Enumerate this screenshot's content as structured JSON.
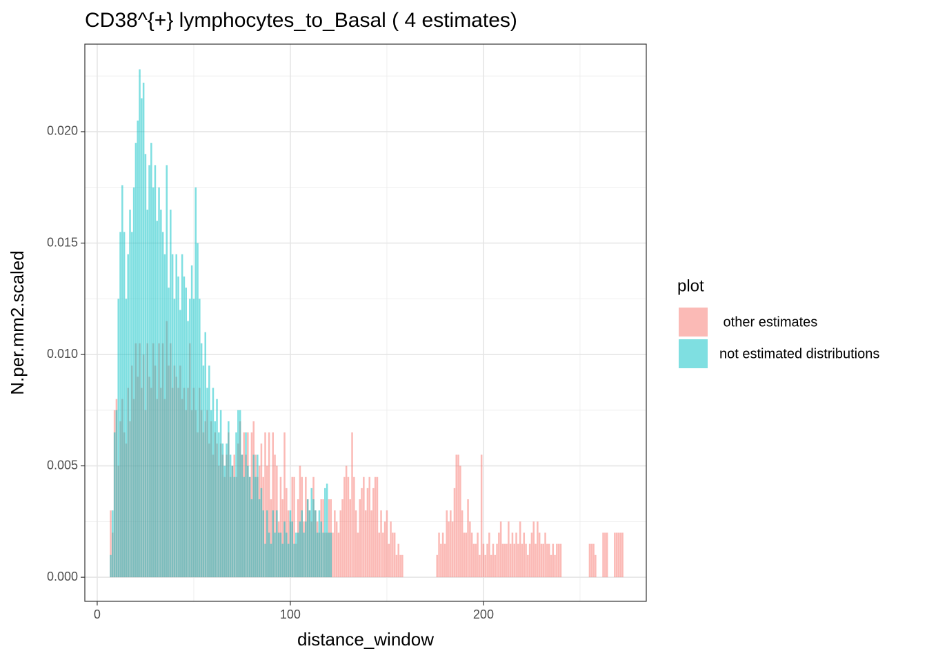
{
  "chart_data": {
    "type": "bar",
    "title": "CD38^{+} lymphocytes_to_Basal ( 4 estimates)",
    "x_label": "distance_window",
    "y_label": "N.per.mm2.scaled",
    "legend_title": "plot",
    "legend_position": "right",
    "grid": true,
    "xlim": [
      -6.4,
      284.3
    ],
    "ylim": [
      -0.00108,
      0.02393
    ],
    "xticks": [
      0,
      100,
      200
    ],
    "yticks": [
      {
        "value": 0,
        "label": "0.000"
      },
      {
        "value": 0.005,
        "label": "0.005"
      },
      {
        "value": 0.01,
        "label": "0.010"
      },
      {
        "value": 0.015,
        "label": "0.015"
      },
      {
        "value": 0.02,
        "label": "0.020"
      }
    ],
    "series": [
      {
        "name": " other estimates",
        "color": "#F8766D",
        "opacity": 0.5,
        "x": [
          7,
          8,
          9,
          10,
          11,
          12,
          13,
          14,
          15,
          16,
          17,
          18,
          19,
          20,
          21,
          22,
          23,
          24,
          25,
          26,
          27,
          28,
          29,
          30,
          31,
          32,
          33,
          34,
          35,
          36,
          37,
          38,
          39,
          40,
          41,
          42,
          43,
          44,
          45,
          46,
          47,
          48,
          49,
          50,
          51,
          52,
          53,
          54,
          55,
          56,
          57,
          58,
          59,
          60,
          61,
          62,
          63,
          64,
          65,
          66,
          67,
          68,
          69,
          70,
          71,
          72,
          73,
          74,
          75,
          76,
          77,
          78,
          79,
          80,
          81,
          82,
          83,
          84,
          85,
          86,
          87,
          88,
          89,
          90,
          91,
          92,
          93,
          94,
          95,
          96,
          97,
          98,
          99,
          100,
          101,
          102,
          103,
          104,
          105,
          106,
          107,
          108,
          109,
          110,
          111,
          112,
          113,
          114,
          115,
          116,
          117,
          118,
          119,
          120,
          121,
          122,
          123,
          124,
          125,
          126,
          127,
          128,
          129,
          130,
          131,
          132,
          133,
          134,
          135,
          136,
          137,
          138,
          139,
          140,
          141,
          142,
          143,
          144,
          145,
          146,
          147,
          148,
          149,
          150,
          151,
          152,
          153,
          154,
          155,
          156,
          157,
          158,
          176,
          177,
          178,
          179,
          180,
          181,
          182,
          183,
          184,
          185,
          186,
          187,
          188,
          189,
          190,
          191,
          192,
          193,
          194,
          195,
          196,
          197,
          198,
          199,
          200,
          201,
          202,
          203,
          204,
          205,
          206,
          207,
          208,
          209,
          210,
          211,
          212,
          213,
          214,
          215,
          216,
          217,
          218,
          219,
          220,
          221,
          222,
          223,
          224,
          225,
          226,
          227,
          228,
          229,
          230,
          231,
          232,
          233,
          234,
          235,
          236,
          237,
          238,
          239,
          240,
          255,
          256,
          257,
          258,
          262,
          263,
          264,
          268,
          269,
          270,
          271,
          272
        ],
        "values": [
          0.003,
          0.002,
          0.0075,
          0.008,
          0.005,
          0.007,
          0.008,
          0.0065,
          0.006,
          0.0085,
          0.007,
          0.0095,
          0.008,
          0.0105,
          0.009,
          0.0105,
          0.0085,
          0.01,
          0.0075,
          0.0105,
          0.009,
          0.0085,
          0.0105,
          0.0095,
          0.008,
          0.0105,
          0.0085,
          0.0105,
          0.008,
          0.0115,
          0.0095,
          0.0105,
          0.0085,
          0.0095,
          0.009,
          0.0085,
          0.0095,
          0.008,
          0.0085,
          0.0075,
          0.0085,
          0.0105,
          0.0075,
          0.0085,
          0.0075,
          0.0065,
          0.0085,
          0.0075,
          0.0065,
          0.007,
          0.0075,
          0.006,
          0.007,
          0.0055,
          0.0065,
          0.006,
          0.005,
          0.006,
          0.0055,
          0.0045,
          0.0055,
          0.0065,
          0.0045,
          0.005,
          0.0055,
          0.0045,
          0.006,
          0.007,
          0.0055,
          0.0065,
          0.0055,
          0.0065,
          0.0045,
          0.0065,
          0.007,
          0.0055,
          0.0045,
          0.005,
          0.006,
          0.0045,
          0.0065,
          0.005,
          0.0065,
          0.0035,
          0.0065,
          0.0055,
          0.005,
          0.0025,
          0.0045,
          0.0035,
          0.0065,
          0.004,
          0.003,
          0.0025,
          0.0045,
          0.0045,
          0.0015,
          0.0035,
          0.005,
          0.0045,
          0.0025,
          0.0045,
          0.0035,
          0.003,
          0.0025,
          0.0045,
          0.003,
          0.0025,
          0.002,
          0.0035,
          0.0035,
          0.002,
          0.002,
          0.0035,
          0.0035,
          0.002,
          0.003,
          0.0025,
          0.002,
          0.003,
          0.0035,
          0.0045,
          0.005,
          0.0045,
          0.0035,
          0.0065,
          0.0045,
          0.003,
          0.002,
          0.0035,
          0.004,
          0.0045,
          0.003,
          0.004,
          0.0045,
          0.003,
          0.004,
          0.0045,
          0.0045,
          0.002,
          0.003,
          0.002,
          0.0025,
          0.003,
          0.0015,
          0.0025,
          0.002,
          0.002,
          0.001,
          0.0015,
          0.001,
          0.001,
          0.001,
          0.002,
          0.0015,
          0.002,
          0.0015,
          0.003,
          0.0025,
          0.003,
          0.0025,
          0.004,
          0.0055,
          0.0055,
          0.005,
          0.003,
          0.002,
          0.002,
          0.0035,
          0.0025,
          0.002,
          0.0015,
          0.0015,
          0.002,
          0.001,
          0.0055,
          0.0015,
          0.001,
          0.0015,
          0.002,
          0.001,
          0.0015,
          0.001,
          0.0015,
          0.002,
          0.0025,
          0.0015,
          0.0015,
          0.0015,
          0.0025,
          0.0015,
          0.002,
          0.0015,
          0.002,
          0.0015,
          0.0025,
          0.0015,
          0.002,
          0.0015,
          0.001,
          0.0015,
          0.002,
          0.0025,
          0.0015,
          0.0025,
          0.002,
          0.0015,
          0.0015,
          0.002,
          0.0015,
          0.0015,
          0.001,
          0.0015,
          0.001,
          0.0015,
          0.0015,
          0.0015,
          0.0015,
          0.0015,
          0.0015,
          0.001,
          0.002,
          0.002,
          0.002,
          0.002,
          0.002,
          0.002,
          0.002,
          0.002
        ]
      },
      {
        "name": "not estimated distributions",
        "color": "#00BFC4",
        "opacity": 0.5,
        "x": [
          7,
          8,
          9,
          10,
          11,
          12,
          13,
          14,
          15,
          16,
          17,
          18,
          19,
          20,
          21,
          22,
          23,
          24,
          25,
          26,
          27,
          28,
          29,
          30,
          31,
          32,
          33,
          34,
          35,
          36,
          37,
          38,
          39,
          40,
          41,
          42,
          43,
          44,
          45,
          46,
          47,
          48,
          49,
          50,
          51,
          52,
          53,
          54,
          55,
          56,
          57,
          58,
          59,
          60,
          61,
          62,
          63,
          64,
          65,
          66,
          67,
          68,
          69,
          70,
          71,
          72,
          73,
          74,
          75,
          76,
          77,
          78,
          79,
          80,
          81,
          82,
          83,
          84,
          85,
          86,
          87,
          88,
          89,
          90,
          91,
          92,
          93,
          94,
          95,
          96,
          97,
          98,
          99,
          100,
          101,
          102,
          103,
          104,
          105,
          106,
          107,
          108,
          109,
          110,
          111,
          112,
          113,
          114,
          115,
          116,
          117,
          118,
          119,
          120,
          121
        ],
        "values": [
          0.001,
          0.003,
          0.0065,
          0.0075,
          0.0125,
          0.0155,
          0.0176,
          0.0155,
          0.0125,
          0.0145,
          0.0165,
          0.0155,
          0.0175,
          0.0195,
          0.0205,
          0.0228,
          0.0215,
          0.0222,
          0.019,
          0.0165,
          0.0185,
          0.0195,
          0.0175,
          0.0185,
          0.016,
          0.0175,
          0.0165,
          0.0155,
          0.0145,
          0.0185,
          0.013,
          0.0165,
          0.0145,
          0.0125,
          0.0145,
          0.0135,
          0.012,
          0.0145,
          0.0135,
          0.013,
          0.0115,
          0.0125,
          0.014,
          0.0125,
          0.0175,
          0.015,
          0.0125,
          0.0105,
          0.0095,
          0.011,
          0.0085,
          0.0095,
          0.0075,
          0.0085,
          0.007,
          0.008,
          0.0065,
          0.0075,
          0.006,
          0.005,
          0.006,
          0.007,
          0.0055,
          0.005,
          0.0045,
          0.0065,
          0.0075,
          0.0075,
          0.0055,
          0.0045,
          0.0065,
          0.005,
          0.0045,
          0.0035,
          0.0055,
          0.0045,
          0.0055,
          0.0035,
          0.004,
          0.003,
          0.0015,
          0.003,
          0.002,
          0.0015,
          0.003,
          0.002,
          0.003,
          0.002,
          0.002,
          0.0015,
          0.0025,
          0.002,
          0.0015,
          0.003,
          0.0025,
          0.0015,
          0.002,
          0.002,
          0.0025,
          0.003,
          0.002,
          0.0025,
          0.0035,
          0.003,
          0.004,
          0.0035,
          0.003,
          0.002,
          0.003,
          0.0025,
          0.002,
          0.004,
          0.0042,
          0.002,
          0.002
        ]
      }
    ]
  }
}
